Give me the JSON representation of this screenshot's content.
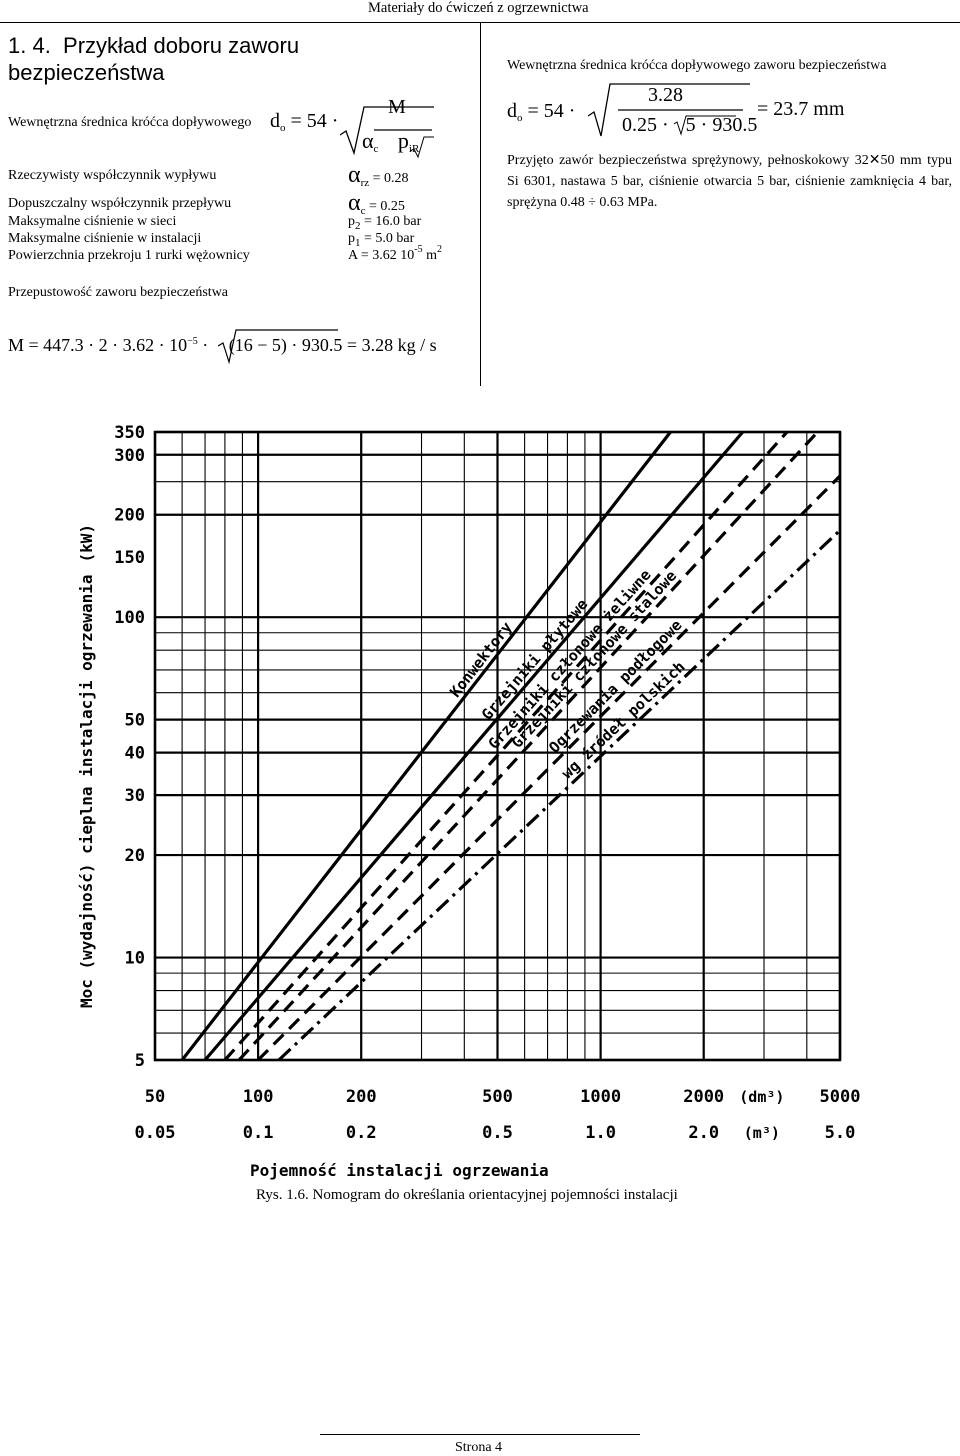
{
  "header": {
    "title": "Materiały do ćwiczeń z ogrzewnictwa"
  },
  "section": {
    "number": "1. 4.",
    "title": "Przykład doboru zaworu bezpieczeństwa"
  },
  "left": {
    "formula_label": "Wewnętrzna średnica króćca dopływowego",
    "formula": {
      "lhs": "d",
      "lhs_sub": "o",
      "eq": "= 54 ·",
      "num": "M",
      "den_alpha": "α",
      "den_alpha_sub": "c",
      "den_p": "p",
      "den_p_sub": "iR"
    },
    "params": [
      {
        "label": "Rzeczywisty współczynnik wypływu",
        "sym": "α",
        "sub": "rz",
        "value": " = 0.28"
      },
      {
        "label": "Dopuszczalny współczynnik przepływu",
        "sym": "α",
        "sub": "c",
        "value": " = 0.25"
      },
      {
        "label": "Maksymalne ciśnienie w sieci",
        "sym": "p",
        "sub": "2",
        "value": " = 16.0 bar"
      },
      {
        "label": "Maksymalne ciśnienie w instalacji",
        "sym": "p",
        "sub": "1",
        "value": " = 5.0 bar"
      },
      {
        "label": "Powierzchnia przekroju 1 rurki wężownicy",
        "sym": "A",
        "value": " = 3.62 10",
        "sup": "-5",
        "unit": " m",
        "unit_sup": "2"
      }
    ],
    "flow_label": "Przepustowość zaworu bezpieczeństwa",
    "flow_formula": {
      "start": "M = 447.3 · 2 · 3.62 · 10",
      "exp": "−5",
      "mid": " · ",
      "radicand": "(16 − 5) · 930.5",
      "end": " = 3.28  kg / s"
    }
  },
  "right": {
    "formula_label": "Wewnętrzna średnica króćca dopływowego zaworu bezpieczeństwa",
    "formula": {
      "lhs": "d",
      "lhs_sub": "o",
      "eq": "= 54 ·",
      "num": "3.28",
      "den": "0.25 · ",
      "den_root": "5 · 930.5",
      "result": "= 23.7  mm"
    },
    "para": "Przyjęto zawór bezpieczeństwa sprężynowy, pełnoskokowy 32✕50 mm typu Si 6301, nastawa 5 bar, ciśnienie otwarcia 5 bar, ciśnienie zamknięcia 4 bar, sprężyna 0.48 ÷ 0.63 MPa."
  },
  "chart_data": {
    "type": "line",
    "x_scale": "log",
    "y_scale": "log",
    "xlim": [
      50,
      5000
    ],
    "ylim": [
      5,
      350
    ],
    "x_ticks_dm3": [
      "50",
      "100",
      "200",
      "500",
      "1000",
      "2000",
      "5000"
    ],
    "x_ticks_m3": [
      "0.05",
      "0.1",
      "0.2",
      "0.5",
      "1.0",
      "2.0",
      "5.0"
    ],
    "x_tick_values": [
      50,
      100,
      200,
      500,
      1000,
      2000,
      5000
    ],
    "y_ticks": [
      "350",
      "300",
      "200",
      "150",
      "100",
      "50",
      "40",
      "30",
      "20",
      "10",
      "5"
    ],
    "y_tick_values": [
      350,
      300,
      200,
      150,
      100,
      50,
      40,
      30,
      20,
      10,
      5
    ],
    "x_unit_dm3": "(dm³)",
    "x_unit_m3": "(m³)",
    "xlabel": "Pojemność instalacji ogrzewania",
    "ylabel": "Moc (wydajność) cieplna instalacji ogrzewania",
    "ylabel_unit": "(kW)",
    "grid": true,
    "series": [
      {
        "name": "Konwektory",
        "style": "solid",
        "x": [
          60,
          1600
        ],
        "y": [
          5,
          350
        ]
      },
      {
        "name": "Grzejniki płytowe",
        "style": "solid",
        "x": [
          70,
          2600
        ],
        "y": [
          5,
          350
        ]
      },
      {
        "name": "Grzejniki członowe żeliwne",
        "style": "dashed",
        "x": [
          80,
          3500
        ],
        "y": [
          5,
          350
        ]
      },
      {
        "name": "Grzejniki członowe stalowe",
        "style": "dashed",
        "x": [
          88,
          4300
        ],
        "y": [
          5,
          350
        ]
      },
      {
        "name": "Ogrzewania podłogowe",
        "style": "dashed",
        "x": [
          100,
          5000
        ],
        "y": [
          5,
          260
        ]
      },
      {
        "name": "wg źródeł polskich",
        "style": "dashdot",
        "x": [
          115,
          5000
        ],
        "y": [
          5,
          180
        ]
      }
    ]
  },
  "figure": {
    "caption": "Rys. 1.6. Nomogram do określania orientacyjnej pojemności instalacji"
  },
  "footer": {
    "page": "Strona 4"
  }
}
